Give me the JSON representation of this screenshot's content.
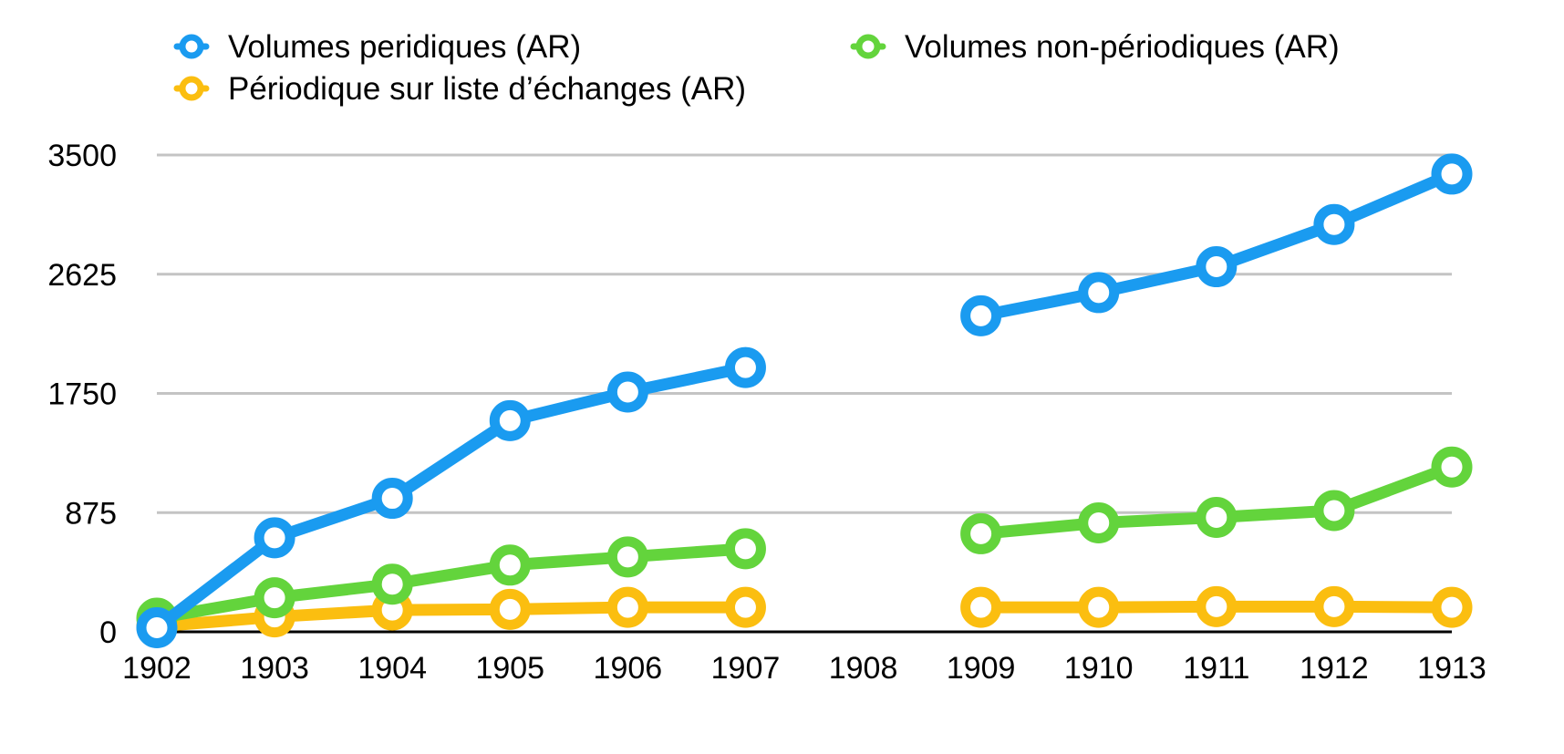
{
  "chart_data": {
    "type": "line",
    "title": "",
    "xlabel": "",
    "ylabel": "",
    "categories": [
      "1902",
      "1903",
      "1904",
      "1905",
      "1906",
      "1907",
      "1908",
      "1909",
      "1910",
      "1911",
      "1912",
      "1913"
    ],
    "yticks": [
      "0",
      "875",
      "1750",
      "2625",
      "3500"
    ],
    "ylim": [
      0,
      3500
    ],
    "grid": true,
    "legend_position": "top",
    "series": [
      {
        "name": "Volumes peridiques (AR)",
        "color": "#1A9BF0",
        "values": [
          30,
          690,
          980,
          1550,
          1760,
          1940,
          null,
          2320,
          2490,
          2680,
          2990,
          3360
        ]
      },
      {
        "name": "Volumes non-périodiques (AR)",
        "color": "#63D43C",
        "values": [
          100,
          250,
          350,
          490,
          550,
          610,
          null,
          720,
          800,
          840,
          890,
          1210
        ]
      },
      {
        "name": "Périodique sur liste d’échanges (AR)",
        "color": "#FBBE10",
        "values": [
          40,
          110,
          160,
          165,
          180,
          180,
          null,
          180,
          180,
          185,
          185,
          180
        ]
      }
    ]
  }
}
